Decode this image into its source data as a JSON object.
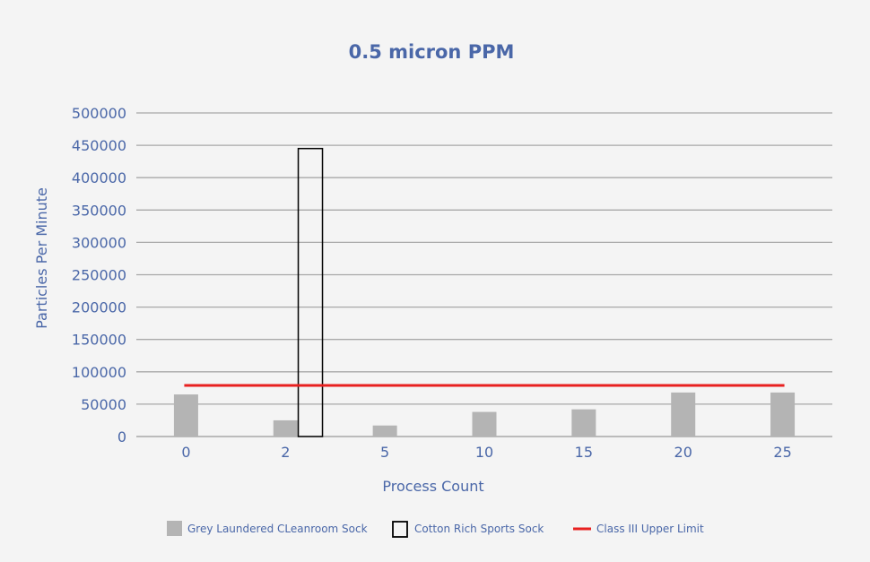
{
  "chart_data": {
    "type": "bar",
    "title": "0.5 micron PPM",
    "xlabel": "Process Count",
    "ylabel": "Particles Per Minute",
    "categories": [
      "0",
      "2",
      "5",
      "10",
      "15",
      "20",
      "25"
    ],
    "ylim": [
      0,
      500000
    ],
    "yticks": [
      0,
      50000,
      100000,
      150000,
      200000,
      250000,
      300000,
      350000,
      400000,
      450000,
      500000
    ],
    "grid": true,
    "legend_position": "bottom",
    "series": [
      {
        "name": "Grey Laundered CLeanroom Sock",
        "style": "filled",
        "color": "#b4b4b4",
        "values": [
          65000,
          25000,
          17000,
          38000,
          42000,
          68000,
          68000
        ]
      },
      {
        "name": "Cotton Rich Sports Sock",
        "style": "outline",
        "color": "#000000",
        "values": [
          null,
          445000,
          null,
          null,
          null,
          null,
          null
        ]
      },
      {
        "name": "Class III Upper Limit",
        "style": "line",
        "color": "#e8201f",
        "values": [
          79000,
          79000,
          79000,
          79000,
          79000,
          79000,
          79000
        ]
      }
    ]
  }
}
